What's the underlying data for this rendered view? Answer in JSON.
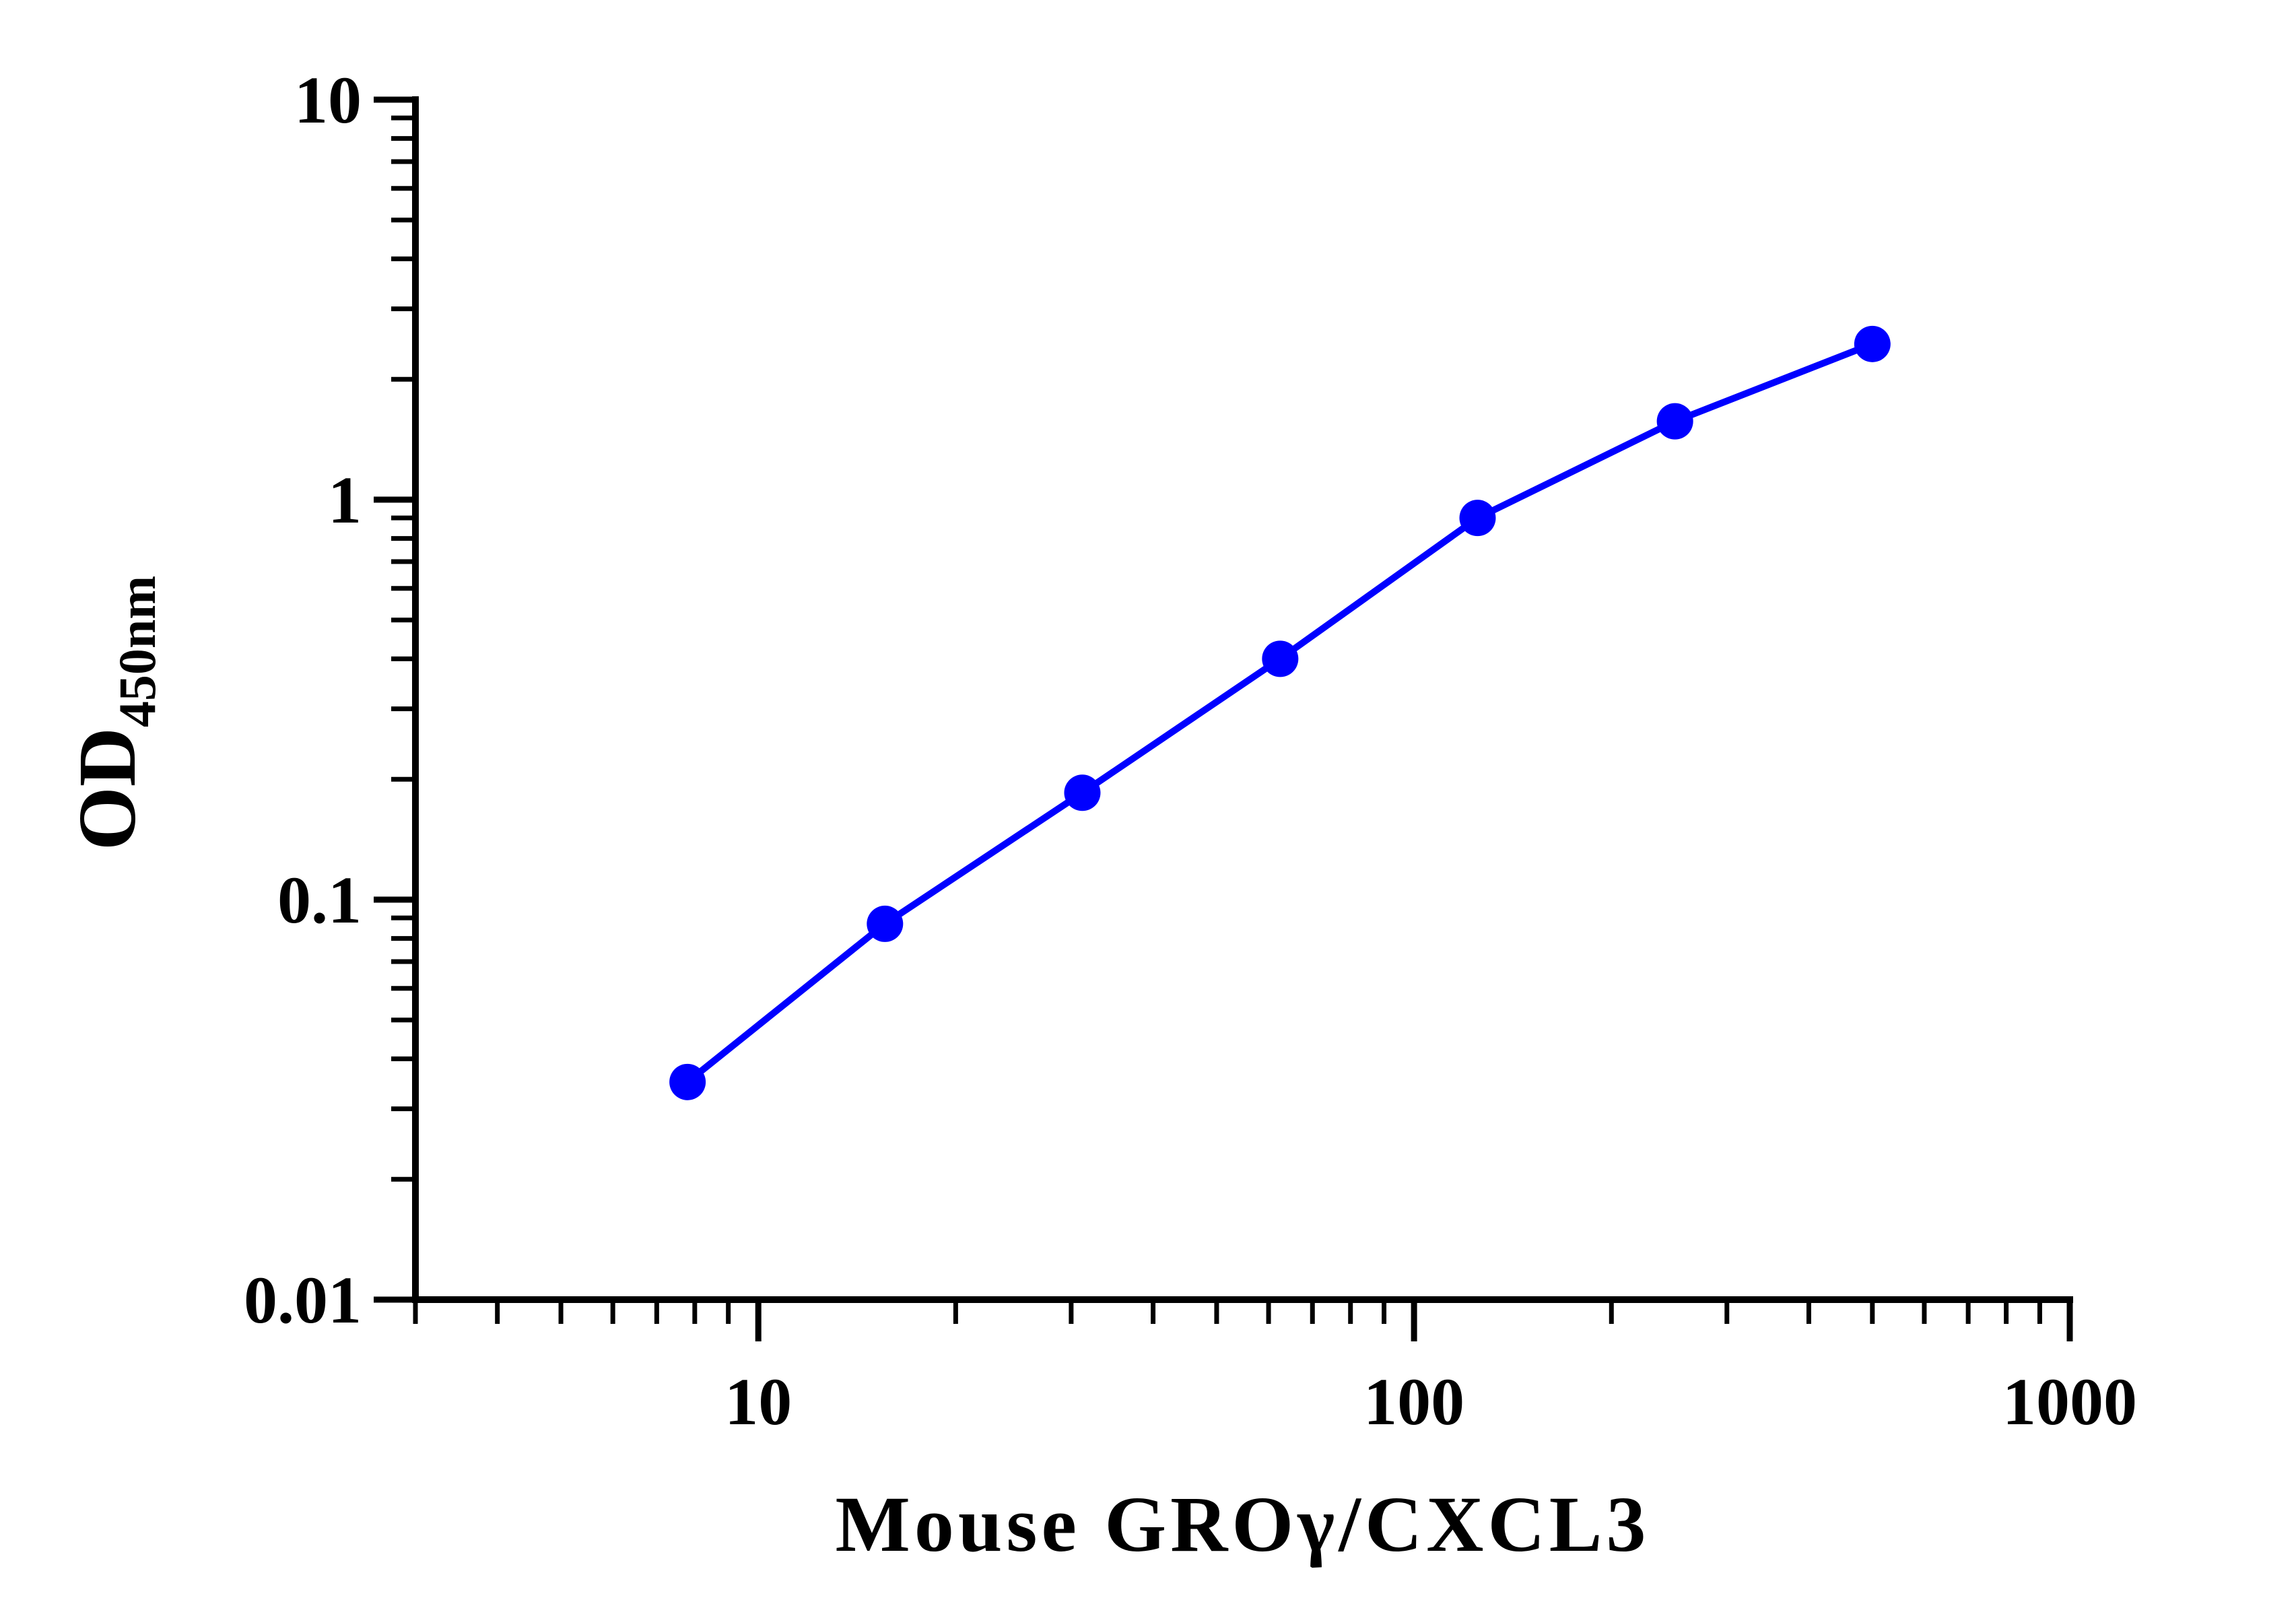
{
  "chart_data": {
    "type": "line",
    "xlabel": "Mouse GROγ/CXCL3",
    "ylabel": "OD",
    "ylabel_subscript": "450nm",
    "x_scale": "log",
    "y_scale": "log",
    "xlim": [
      3,
      1000
    ],
    "ylim": [
      0.01,
      10
    ],
    "x_ticks": [
      "10",
      "100",
      "1000"
    ],
    "y_ticks": [
      "0.01",
      "0.1",
      "1",
      "10"
    ],
    "grid": false,
    "series": [
      {
        "color": "#0000ff",
        "marker": "circle",
        "x": [
          7.8,
          15.6,
          31.2,
          62.5,
          125,
          250,
          500
        ],
        "y": [
          0.035,
          0.087,
          0.185,
          0.4,
          0.9,
          1.57,
          2.45
        ]
      }
    ]
  }
}
